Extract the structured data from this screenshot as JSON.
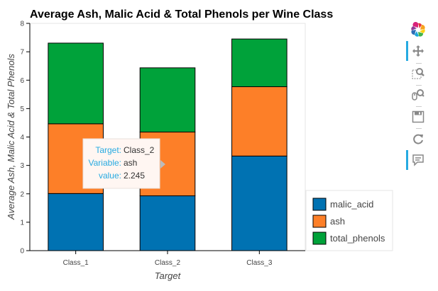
{
  "chart_data": {
    "type": "bar",
    "stacked": true,
    "title": "Average Ash, Malic Acid & Total Phenols per Wine Class",
    "xlabel": "Target",
    "ylabel": "Average Ash, Malic Acid & Total Phenols",
    "categories": [
      "Class_1",
      "Class_2",
      "Class_3"
    ],
    "ylim": [
      0,
      8
    ],
    "yticks": [
      "0",
      "1",
      "2",
      "3",
      "4",
      "5",
      "6",
      "7",
      "8"
    ],
    "series": [
      {
        "name": "malic_acid",
        "color": "#0072b2",
        "values": [
          2.01,
          1.93,
          3.33
        ]
      },
      {
        "name": "ash",
        "color": "#fd7f28",
        "values": [
          2.455,
          2.245,
          2.44
        ]
      },
      {
        "name": "total_phenols",
        "color": "#00a23a",
        "values": [
          2.84,
          2.26,
          1.68
        ]
      }
    ],
    "legend_position": "bottom-right",
    "grid": false,
    "tooltip": {
      "keys": [
        "Target:",
        "Variable:",
        "value:"
      ],
      "values": [
        "Class_2",
        "ash",
        "2.245"
      ]
    }
  },
  "toolbar": {
    "tools": [
      "bokeh-logo-icon",
      "pan-icon",
      "box-zoom-icon",
      "wheel-zoom-icon",
      "save-icon",
      "reset-icon",
      "hover-icon"
    ]
  }
}
